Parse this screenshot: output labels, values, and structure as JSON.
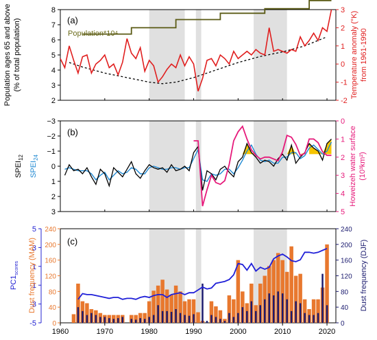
{
  "chart_data": [
    {
      "panel": "(a)",
      "type": "line",
      "x_years": [
        1960,
        1970,
        1980,
        1990,
        2000,
        2010,
        2020
      ],
      "left_axis": {
        "label_line1": "Population ages 65 and above",
        "label_line2": "(% of total population)",
        "ticks": [
          2,
          3,
          4,
          5,
          6,
          7,
          8
        ],
        "range": [
          2,
          8
        ]
      },
      "right_axis": {
        "label_line1": "Temperature anomaly (°K)",
        "label_line2": "from 1961-1990",
        "ticks": [
          -2,
          -1,
          0,
          1,
          2,
          3
        ],
        "range": [
          -2,
          3
        ]
      },
      "series_label_population": "Population*10⁴",
      "temperature_anomaly": {
        "x": [
          1960,
          1961,
          1962,
          1963,
          1964,
          1965,
          1966,
          1967,
          1968,
          1969,
          1970,
          1971,
          1972,
          1973,
          1974,
          1975,
          1976,
          1977,
          1978,
          1979,
          1980,
          1981,
          1982,
          1983,
          1984,
          1985,
          1986,
          1987,
          1988,
          1989,
          1990,
          1991,
          1992,
          1993,
          1994,
          1995,
          1996,
          1997,
          1998,
          1999,
          2000,
          2001,
          2002,
          2003,
          2004,
          2005,
          2006,
          2007,
          2008,
          2009,
          2010,
          2011,
          2012,
          2013,
          2014,
          2015,
          2016,
          2017,
          2018,
          2019,
          2020,
          2021
        ],
        "y": [
          0.3,
          -0.2,
          1.0,
          0.2,
          -0.5,
          0.4,
          0.5,
          -0.5,
          0.0,
          0.2,
          0.5,
          -0.2,
          0.0,
          -0.6,
          0.1,
          1.4,
          0.6,
          0.3,
          0.9,
          -0.4,
          0.2,
          -0.1,
          -1.0,
          -0.7,
          -0.3,
          0.0,
          -0.2,
          0.5,
          -0.1,
          0.4,
          0.0,
          -1.5,
          -0.8,
          0.2,
          0.3,
          -0.1,
          0.5,
          0.3,
          0.0,
          0.7,
          0.3,
          0.5,
          0.7,
          0.5,
          0.8,
          0.6,
          0.5,
          2.0,
          0.7,
          0.8,
          0.7,
          0.6,
          0.8,
          0.7,
          1.5,
          1.0,
          1.3,
          1.7,
          1.3,
          2.0,
          1.8,
          3.0
        ]
      },
      "population_steps": [
        {
          "x0": 1965,
          "x1": 1976,
          "y": 1.65
        },
        {
          "x0": 1976,
          "x1": 1986,
          "y": 2.0
        },
        {
          "x0": 1986,
          "x1": 1996,
          "y": 2.45
        },
        {
          "x0": 1996,
          "x1": 2006,
          "y": 2.8
        },
        {
          "x0": 2006,
          "x1": 2016,
          "y": 3.05
        },
        {
          "x0": 2016,
          "x1": 2021,
          "y": 3.5
        }
      ],
      "population_step_jumps": [
        1976,
        1986,
        1996,
        2006,
        2016
      ],
      "elderly_percent": {
        "x": [
          1962,
          1965,
          1970,
          1975,
          1980,
          1983,
          1986,
          1990,
          1995,
          2000,
          2005,
          2010,
          2015,
          2020
        ],
        "y": [
          4.5,
          4.2,
          3.8,
          3.5,
          3.2,
          3.1,
          3.2,
          3.5,
          4.0,
          4.5,
          4.9,
          5.2,
          5.6,
          6.2
        ]
      }
    },
    {
      "panel": "(b)",
      "type": "line",
      "left_axis": {
        "label_black": "SPEI",
        "label_black_sub": "12",
        "label_blue": "SPEI",
        "label_blue_sub": "24",
        "ticks": [
          -3,
          -2,
          -1,
          0,
          1,
          2,
          3
        ],
        "tick_labels": [
          "−3",
          "−2",
          "−1",
          "0",
          "1",
          "2",
          "3"
        ],
        "range": [
          -3,
          3
        ]
      },
      "right_axis": {
        "label_line1": "Howeizeh water surface",
        "label_line2": "(10³km²)",
        "ticks": [
          0,
          1,
          2,
          3,
          4,
          5
        ],
        "range": [
          0,
          5
        ]
      },
      "spei12": {
        "x": [
          1961,
          1962,
          1963,
          1964,
          1965,
          1966,
          1967,
          1968,
          1969,
          1970,
          1971,
          1972,
          1973,
          1974,
          1975,
          1976,
          1977,
          1978,
          1979,
          1980,
          1981,
          1982,
          1983,
          1984,
          1985,
          1986,
          1987,
          1988,
          1989,
          1990,
          1991,
          1992,
          1993,
          1994,
          1995,
          1996,
          1997,
          1998,
          1999,
          2000,
          2001,
          2002,
          2003,
          2004,
          2005,
          2006,
          2007,
          2008,
          2009,
          2010,
          2011,
          2012,
          2013,
          2014,
          2015,
          2016,
          2017,
          2018,
          2019,
          2020,
          2021
        ],
        "y": [
          0.6,
          -0.1,
          0.3,
          0.2,
          0.5,
          0.1,
          0.7,
          1.2,
          0.2,
          0.5,
          1.3,
          0.1,
          0.4,
          0.7,
          0.2,
          -0.3,
          0.5,
          0.8,
          0.3,
          -0.1,
          0.1,
          0.2,
          0.1,
          0.4,
          -0.1,
          0.3,
          0.2,
          0.0,
          0.3,
          -0.9,
          -1.3,
          1.6,
          0.3,
          0.5,
          0.9,
          0.2,
          0.0,
          0.4,
          0.7,
          -0.3,
          -0.6,
          -1.5,
          -0.9,
          -0.6,
          -0.2,
          -0.4,
          -0.3,
          0.0,
          -0.5,
          -0.8,
          -0.4,
          -1.4,
          -0.2,
          -0.6,
          -0.9,
          -1.5,
          -1.2,
          -1.0,
          -0.4,
          -1.5,
          -1.8
        ]
      },
      "spei24": {
        "x": [
          1961,
          1962,
          1963,
          1964,
          1965,
          1966,
          1967,
          1968,
          1969,
          1970,
          1971,
          1972,
          1973,
          1974,
          1975,
          1976,
          1977,
          1978,
          1979,
          1980,
          1981,
          1982,
          1983,
          1984,
          1985,
          1986,
          1987,
          1988,
          1989,
          1990,
          1991,
          1992,
          1993,
          1994,
          1995,
          1996,
          1997,
          1998,
          1999,
          2000,
          2001,
          2002,
          2003,
          2004,
          2005,
          2006,
          2007,
          2008,
          2009,
          2010,
          2011,
          2012,
          2013,
          2014,
          2015,
          2016,
          2017,
          2018,
          2019,
          2020,
          2021
        ],
        "y": [
          0.2,
          0.1,
          0.2,
          0.3,
          0.3,
          0.3,
          0.5,
          0.9,
          0.6,
          0.4,
          0.9,
          0.6,
          0.3,
          0.5,
          0.4,
          0.1,
          0.2,
          0.5,
          0.5,
          0.1,
          0.0,
          0.1,
          0.2,
          0.2,
          0.1,
          0.1,
          0.2,
          0.1,
          0.1,
          -0.5,
          -1.1,
          0.9,
          1.0,
          0.5,
          0.6,
          0.5,
          0.2,
          0.2,
          0.5,
          0.1,
          -0.4,
          -1.0,
          -1.4,
          -0.8,
          -0.4,
          -0.3,
          -0.4,
          -0.2,
          -0.2,
          -0.6,
          -0.6,
          -0.9,
          -0.9,
          -0.5,
          -0.7,
          -1.2,
          -1.4,
          -1.1,
          -0.8,
          -1.0,
          -1.6
        ]
      },
      "water_surface": {
        "x": [
          1990,
          1991,
          1992,
          1993,
          1994,
          1995,
          1996,
          1997,
          1998,
          1999,
          2000,
          2001,
          2002,
          2003,
          2004,
          2005,
          2006,
          2007,
          2008,
          2009,
          2010,
          2011,
          2012,
          2013,
          2014,
          2015,
          2016,
          2017,
          2018,
          2019,
          2020,
          2021
        ],
        "y": [
          1.1,
          1.1,
          4.7,
          3.8,
          3.0,
          3.4,
          3.5,
          3.3,
          2.4,
          1.1,
          0.6,
          0.3,
          1.0,
          1.6,
          1.9,
          2.1,
          2.0,
          2.0,
          2.1,
          2.2,
          1.7,
          0.8,
          0.9,
          1.3,
          1.9,
          1.8,
          1.0,
          1.0,
          1.2,
          1.7,
          1.9,
          1.9
        ]
      },
      "yellow_fill_spans": [
        [
          2001,
          2004
        ],
        [
          2011,
          2015
        ],
        [
          2016,
          2021
        ]
      ],
      "yellow_fill_reference": -0.8
    },
    {
      "panel": "(c)",
      "type": "bar",
      "xlabel_ticks": [
        "1960",
        "1970",
        "1980",
        "1990",
        "2000",
        "2010",
        "2020"
      ],
      "x_ticks": [
        1960,
        1970,
        1980,
        1990,
        2000,
        2010,
        2020
      ],
      "left_axis_pc1": {
        "label": "PC1",
        "label_sub": "scores",
        "ticks": [
          -5,
          -3,
          -1,
          1,
          3,
          5
        ],
        "range": [
          -5,
          5
        ]
      },
      "left_axis_mam": {
        "label": "Dust frequency (MAM)",
        "ticks": [
          0,
          40,
          80,
          120,
          160,
          200,
          240
        ],
        "range": [
          0,
          240
        ]
      },
      "right_axis_djf": {
        "label": "Dust frequency (DJF)",
        "ticks": [
          0,
          40,
          80,
          120,
          160,
          200,
          240
        ],
        "range": [
          0,
          240
        ]
      },
      "years": [
        1961,
        1962,
        1963,
        1964,
        1965,
        1966,
        1967,
        1968,
        1969,
        1970,
        1971,
        1972,
        1973,
        1974,
        1975,
        1976,
        1977,
        1978,
        1979,
        1980,
        1981,
        1982,
        1983,
        1984,
        1985,
        1986,
        1987,
        1988,
        1989,
        1990,
        1991,
        1992,
        1993,
        1994,
        1995,
        1996,
        1997,
        1998,
        1999,
        2000,
        2001,
        2002,
        2003,
        2004,
        2005,
        2006,
        2007,
        2008,
        2009,
        2010,
        2011,
        2012,
        2013,
        2014,
        2015,
        2016,
        2017,
        2018,
        2019,
        2020,
        2021
      ],
      "mam": [
        0,
        0,
        22,
        100,
        55,
        50,
        35,
        32,
        25,
        20,
        20,
        20,
        20,
        20,
        0,
        20,
        20,
        25,
        25,
        55,
        82,
        95,
        110,
        85,
        72,
        95,
        80,
        55,
        60,
        60,
        27,
        5,
        0,
        55,
        42,
        32,
        10,
        70,
        60,
        160,
        80,
        50,
        100,
        45,
        100,
        120,
        145,
        160,
        178,
        160,
        130,
        195,
        120,
        125,
        60,
        35,
        60,
        60,
        90,
        200,
        0
      ],
      "djf": [
        0,
        0,
        0,
        40,
        30,
        20,
        25,
        20,
        15,
        15,
        12,
        10,
        12,
        15,
        0,
        10,
        8,
        12,
        10,
        15,
        20,
        45,
        30,
        30,
        28,
        35,
        25,
        20,
        18,
        22,
        0,
        100,
        5,
        20,
        15,
        10,
        5,
        25,
        15,
        25,
        40,
        30,
        55,
        30,
        45,
        60,
        75,
        70,
        80,
        75,
        60,
        30,
        55,
        50,
        25,
        20,
        20,
        25,
        125,
        45,
        0
      ],
      "pc1": {
        "x": [
          1964,
          1965,
          1966,
          1967,
          1968,
          1969,
          1970,
          1971,
          1972,
          1973,
          1974,
          1975,
          1976,
          1977,
          1978,
          1979,
          1980,
          1981,
          1982,
          1983,
          1984,
          1985,
          1986,
          1987,
          1988,
          1989,
          1990,
          1991,
          1992,
          1993,
          1994,
          1995,
          1996,
          1997,
          1998,
          1999,
          2000,
          2001,
          2002,
          2003,
          2004,
          2005,
          2006,
          2007,
          2008,
          2009,
          2010,
          2011,
          2012,
          2013,
          2014,
          2015,
          2016,
          2017,
          2018,
          2019,
          2020
        ],
        "y": [
          -2.5,
          -1.9,
          -2.0,
          -2.0,
          -2.1,
          -2.2,
          -2.3,
          -2.4,
          -2.3,
          -2.3,
          -2.5,
          -2.4,
          -2.4,
          -2.5,
          -2.3,
          -2.2,
          -2.3,
          -2.1,
          -2.0,
          -2.0,
          -2.3,
          -2.0,
          -1.9,
          -1.8,
          -2.0,
          -1.8,
          -1.8,
          -1.5,
          -1.2,
          -1.4,
          -1.3,
          -0.8,
          -0.7,
          -0.6,
          -0.4,
          0.1,
          1.3,
          1.2,
          0.6,
          1.3,
          0.5,
          0.9,
          0.7,
          0.9,
          1.8,
          2.1,
          2.3,
          2.0,
          1.6,
          1.5,
          1.7,
          2.5,
          2.5,
          2.4,
          2.5,
          2.7,
          2.9
        ]
      }
    }
  ],
  "gray_shades": [
    [
      1980,
      1988
    ],
    [
      1990.5,
      1991.7
    ],
    [
      2003.5,
      2011
    ]
  ]
}
